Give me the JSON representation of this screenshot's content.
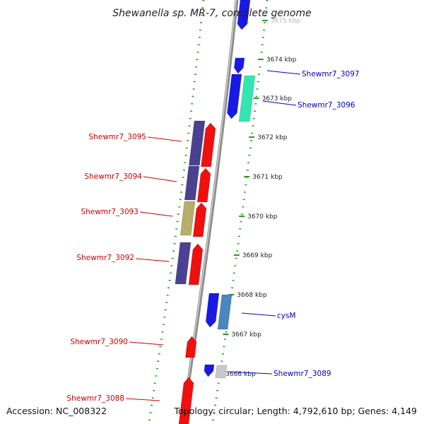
{
  "title": "Shewanella sp. MR-7, complete genome",
  "footer": {
    "accession": "Accession: NC_008322",
    "topology": "Topology: circular; Length: 4,792,610 bp; Genes: 4,149"
  },
  "colors": {
    "background": "#ffffff",
    "backbone": "#8c8c8c",
    "dotted_track": "#2a9a2a",
    "forward_label": "#0000cc",
    "reverse_label": "#cc0000",
    "gene_blue": "#1a1ae6",
    "gene_teal": "#33e6b0",
    "gene_steel": "#4a86c0",
    "gene_red": "#f01010",
    "gene_indigo": "#4a4290",
    "gene_olive": "#b6ae6a",
    "gene_gray": "#c8c8c8"
  },
  "ticks": [
    {
      "label": "3675 kbp"
    },
    {
      "label": "3674 kbp"
    },
    {
      "label": "3673 kbp"
    },
    {
      "label": "3672 kbp"
    },
    {
      "label": "3671 kbp"
    },
    {
      "label": "3670 kbp"
    },
    {
      "label": "3669 kbp"
    },
    {
      "label": "3668 kbp"
    },
    {
      "label": "3667 kbp"
    },
    {
      "label": "3666 kbp"
    }
  ],
  "forward_genes": [
    {
      "label": "Shewmr7_3097",
      "color": "gene_blue"
    },
    {
      "label": "Shewmr7_3096",
      "color": "gene_teal"
    },
    {
      "label": "cysM",
      "color": "gene_steel"
    },
    {
      "label": "Shewmr7_3089",
      "color": "gene_gray"
    }
  ],
  "reverse_genes": [
    {
      "label": "Shewmr7_3095",
      "color": "gene_indigo"
    },
    {
      "label": "Shewmr7_3094",
      "color": "gene_indigo"
    },
    {
      "label": "Shewmr7_3093",
      "color": "gene_olive"
    },
    {
      "label": "Shewmr7_3092",
      "color": "gene_indigo"
    },
    {
      "label": "Shewmr7_3090",
      "color": "gene_red"
    },
    {
      "label": "Shewmr7_3088",
      "color": "gene_red"
    }
  ]
}
